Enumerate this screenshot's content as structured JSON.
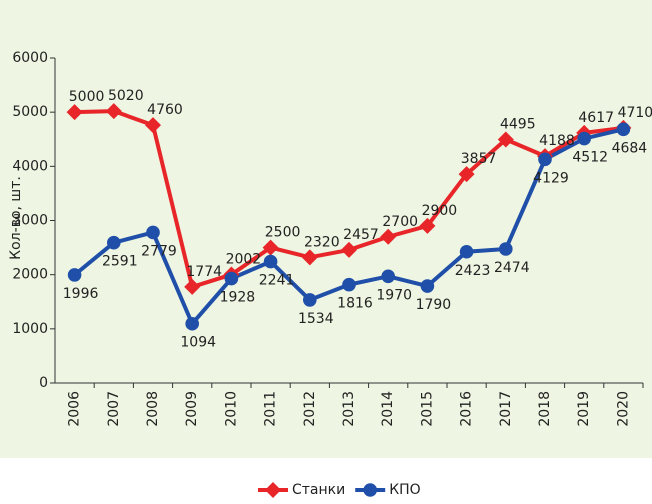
{
  "chart_data": {
    "type": "line",
    "y_label": "Кол-во, шт.",
    "categories": [
      "2006",
      "2007",
      "2008",
      "2009",
      "2010",
      "2011",
      "2012",
      "2013",
      "2014",
      "2015",
      "2016",
      "2017",
      "2018",
      "2019",
      "2020"
    ],
    "series": [
      {
        "name": "Станки",
        "color": "#e8262a",
        "marker": "diamond",
        "values": [
          5000,
          5020,
          4760,
          1774,
          2002,
          2500,
          2320,
          2457,
          2700,
          2900,
          3857,
          4495,
          4188,
          4617,
          4710
        ]
      },
      {
        "name": "КПО",
        "color": "#1f4fa8",
        "marker": "circle",
        "values": [
          1996,
          2591,
          2779,
          1094,
          1928,
          2241,
          1534,
          1816,
          1970,
          1790,
          2423,
          2474,
          4129,
          4512,
          4684
        ]
      }
    ],
    "ylim": [
      0,
      6000
    ],
    "yticks": [
      0,
      1000,
      2000,
      3000,
      4000,
      5000,
      6000
    ],
    "grid": false,
    "legend": "bottom"
  }
}
